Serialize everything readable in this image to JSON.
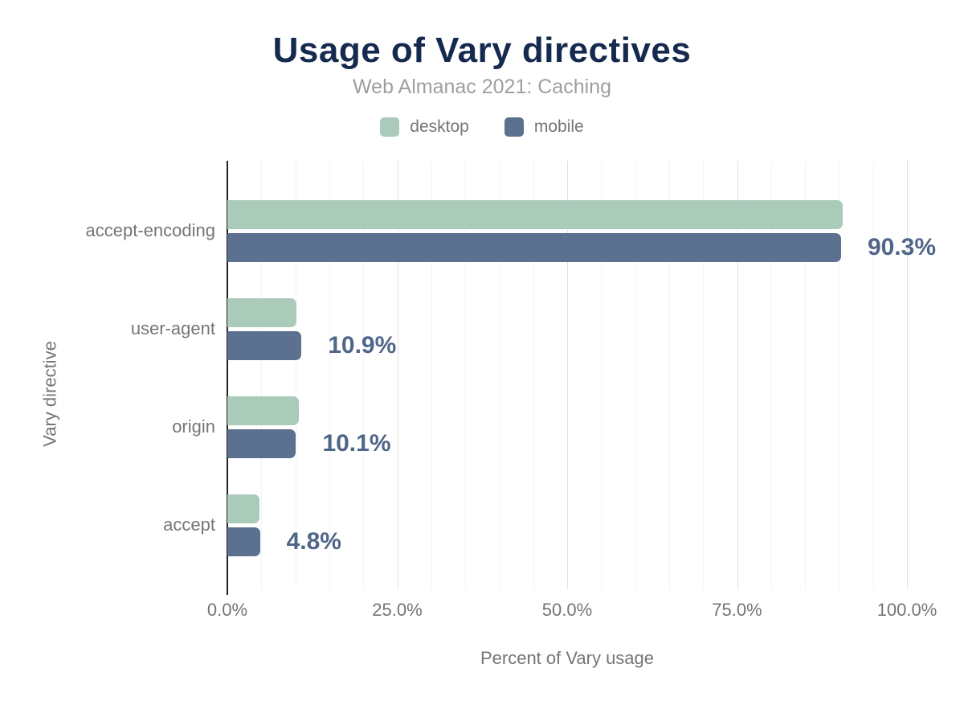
{
  "header": {
    "title": "Usage of Vary directives",
    "subtitle": "Web Almanac 2021: Caching"
  },
  "legend": [
    {
      "label": "desktop",
      "color": "#aacbba"
    },
    {
      "label": "mobile",
      "color": "#5c7190"
    }
  ],
  "colors": {
    "title": "#152a4e",
    "subtitle": "#9e9e9e",
    "axis_text": "#757575",
    "value_label": "#506689",
    "axis_line": "#212121",
    "desktop_bar": "#aacbba",
    "mobile_bar": "#5c7190"
  },
  "chart_data": {
    "type": "bar",
    "orientation": "horizontal",
    "title": "Usage of Vary directives",
    "subtitle": "Web Almanac 2021: Caching",
    "categories": [
      "accept-encoding",
      "user-agent",
      "origin",
      "accept"
    ],
    "series": [
      {
        "name": "desktop",
        "color": "#aacbba",
        "values": [
          90.6,
          10.2,
          10.5,
          4.7
        ]
      },
      {
        "name": "mobile",
        "color": "#5c7190",
        "values": [
          90.3,
          10.9,
          10.1,
          4.8
        ]
      }
    ],
    "data_labels": [
      "90.3%",
      "10.9%",
      "10.1%",
      "4.8%"
    ],
    "data_labels_for_series": "mobile",
    "xlabel": "Percent of Vary usage",
    "ylabel": "Vary directive",
    "x_ticks": [
      {
        "value": 0,
        "label": "0.0%"
      },
      {
        "value": 25,
        "label": "25.0%"
      },
      {
        "value": 50,
        "label": "50.0%"
      },
      {
        "value": 75,
        "label": "75.0%"
      },
      {
        "value": 100,
        "label": "100.0%"
      }
    ],
    "xlim": [
      0,
      106
    ],
    "minor_grid_step": 5,
    "major_grid_step": 25,
    "grid": true,
    "legend_position": "top"
  }
}
